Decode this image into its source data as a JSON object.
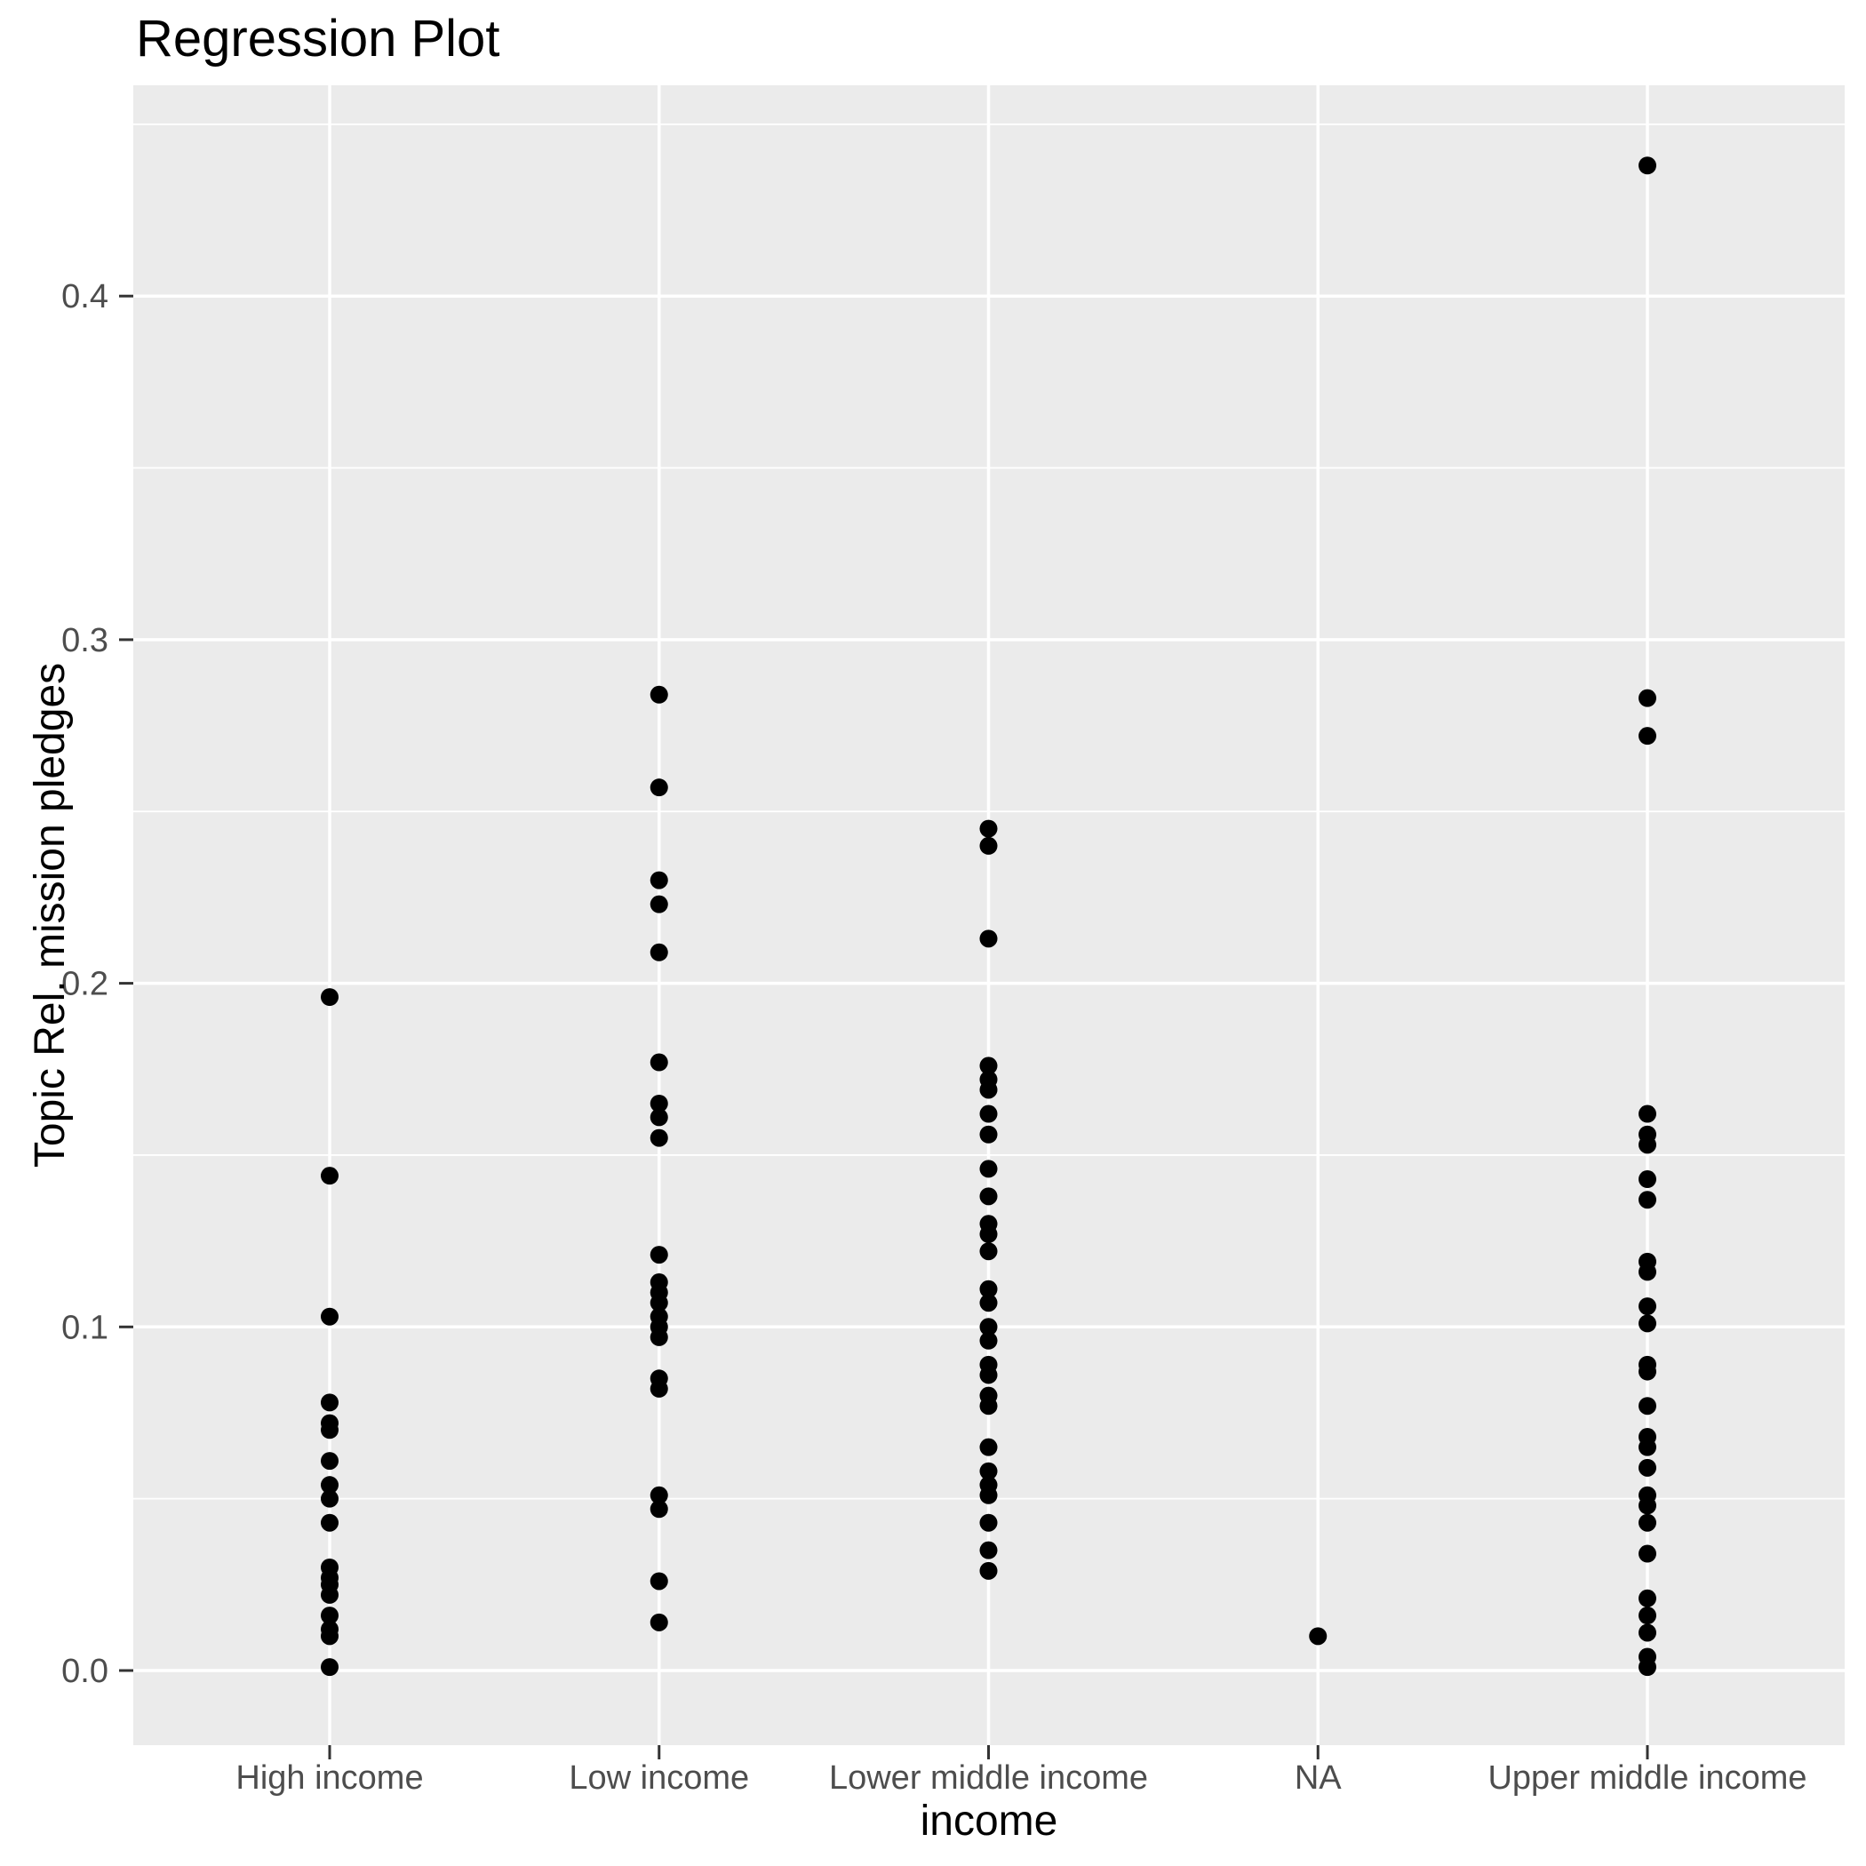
{
  "title": "Regression Plot",
  "colors": {
    "panel_background": "#EBEBEB",
    "gridline": "#FFFFFF",
    "point": "#000000",
    "tick_label": "#4D4D4D",
    "axis_title": "#000000",
    "tick_mark": "#333333"
  },
  "chart_data": {
    "type": "scatter",
    "title": "Regression Plot",
    "xlabel": "income",
    "ylabel": "Topic Rel. mission pledges",
    "categories": [
      "High income",
      "Low income",
      "Lower middle income",
      "NA",
      "Upper middle income"
    ],
    "y_ticks": [
      0.0,
      0.1,
      0.2,
      0.3,
      0.4
    ],
    "y_tick_labels": [
      "0.0",
      "0.1",
      "0.2",
      "0.3",
      "0.4"
    ],
    "y_minor_ticks": [
      0.05,
      0.15,
      0.25,
      0.35,
      0.45
    ],
    "ylim": [
      -0.022,
      0.461
    ],
    "grid": true,
    "legend": "none",
    "series": [
      {
        "name": "High income",
        "values": [
          0.196,
          0.144,
          0.103,
          0.078,
          0.072,
          0.07,
          0.061,
          0.054,
          0.05,
          0.043,
          0.03,
          0.027,
          0.025,
          0.022,
          0.016,
          0.012,
          0.01,
          0.001
        ]
      },
      {
        "name": "Low income",
        "values": [
          0.284,
          0.257,
          0.23,
          0.223,
          0.209,
          0.177,
          0.165,
          0.161,
          0.155,
          0.121,
          0.113,
          0.11,
          0.107,
          0.103,
          0.1,
          0.097,
          0.085,
          0.082,
          0.051,
          0.047,
          0.026,
          0.014
        ]
      },
      {
        "name": "Lower middle income",
        "values": [
          0.245,
          0.24,
          0.213,
          0.176,
          0.172,
          0.169,
          0.162,
          0.156,
          0.146,
          0.138,
          0.13,
          0.127,
          0.122,
          0.111,
          0.107,
          0.1,
          0.096,
          0.089,
          0.086,
          0.08,
          0.077,
          0.065,
          0.058,
          0.054,
          0.051,
          0.043,
          0.035,
          0.029
        ]
      },
      {
        "name": "NA",
        "values": [
          0.01
        ]
      },
      {
        "name": "Upper middle income",
        "values": [
          0.438,
          0.283,
          0.272,
          0.162,
          0.156,
          0.153,
          0.143,
          0.137,
          0.119,
          0.116,
          0.106,
          0.101,
          0.089,
          0.087,
          0.077,
          0.068,
          0.065,
          0.059,
          0.051,
          0.048,
          0.043,
          0.034,
          0.021,
          0.016,
          0.011,
          0.004,
          0.001
        ]
      }
    ]
  }
}
